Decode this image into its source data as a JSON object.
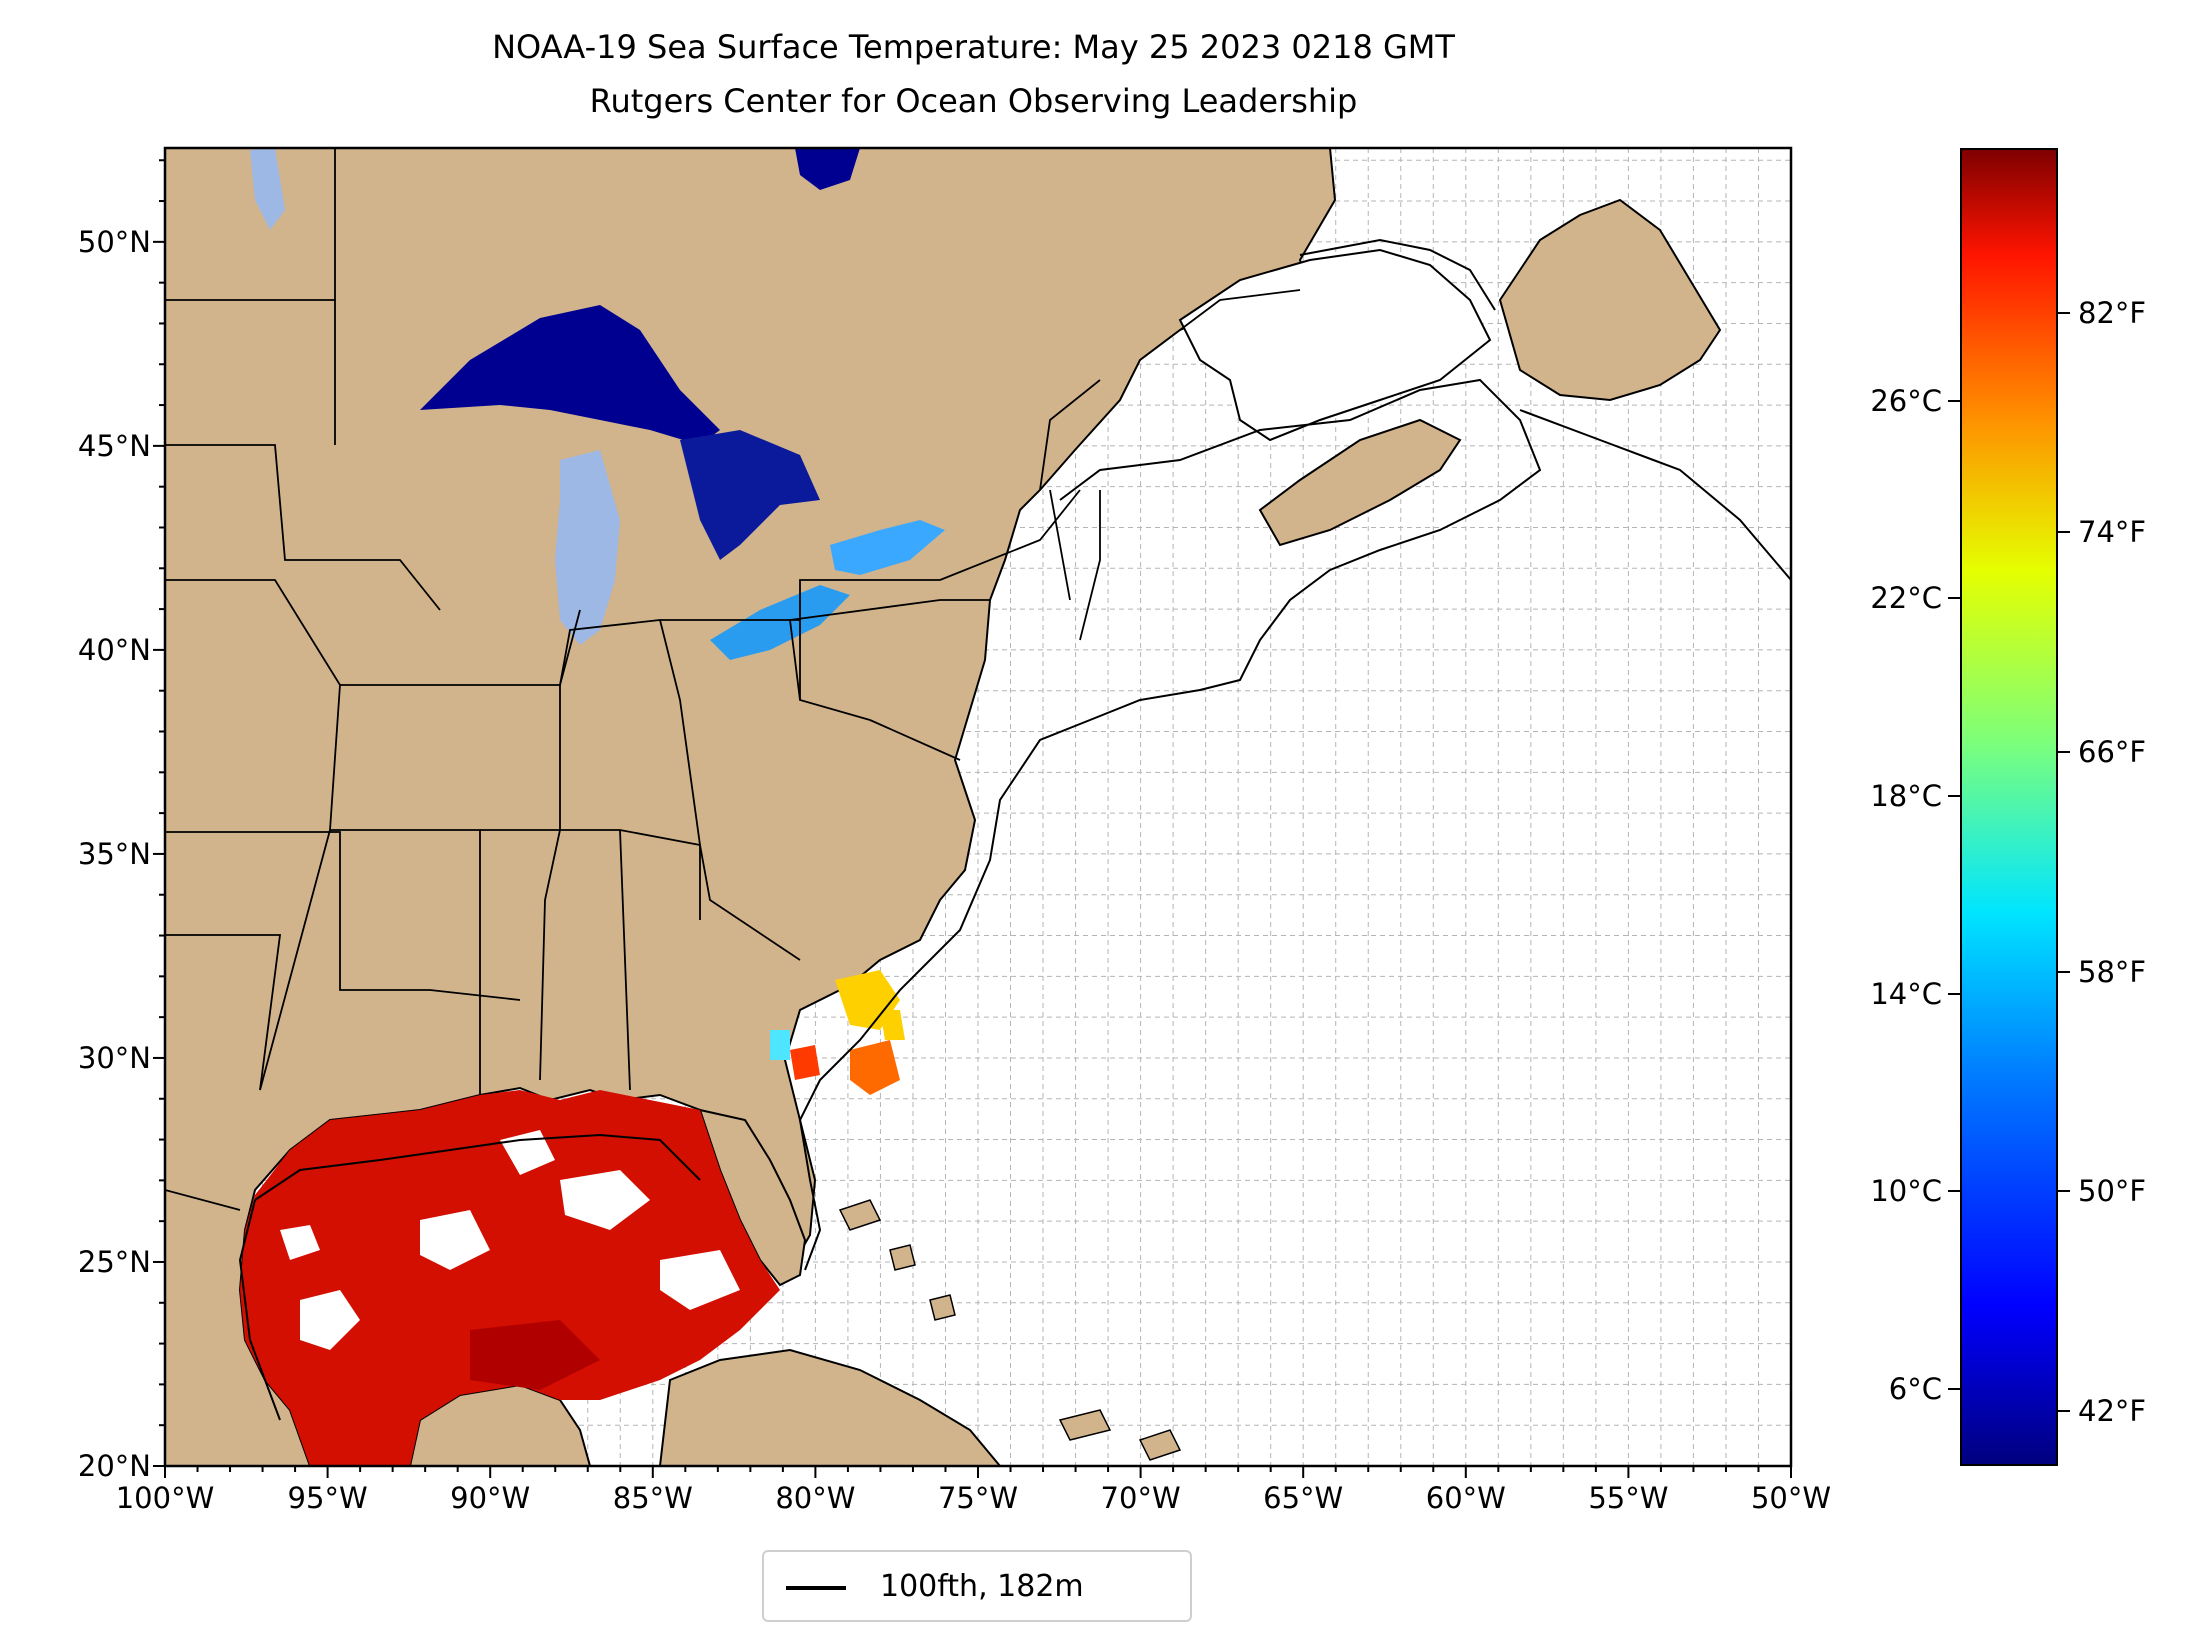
{
  "title_line1": "NOAA-19 Sea Surface Temperature: May 25 2023 0218 GMT",
  "title_line2": "Rutgers Center for Ocean Observing Leadership",
  "map": {
    "lon_range": [
      -100,
      -50
    ],
    "lat_range": [
      20,
      52.3
    ],
    "grid": true,
    "land_color": "#d2b48c",
    "water_lake_color": "#9db8e4",
    "lat_ticks": [
      {
        "value": 20,
        "label": "20°N"
      },
      {
        "value": 25,
        "label": "25°N"
      },
      {
        "value": 30,
        "label": "30°N"
      },
      {
        "value": 35,
        "label": "35°N"
      },
      {
        "value": 40,
        "label": "40°N"
      },
      {
        "value": 45,
        "label": "45°N"
      },
      {
        "value": 50,
        "label": "50°N"
      }
    ],
    "lon_ticks": [
      {
        "value": -100,
        "label": "100°W"
      },
      {
        "value": -95,
        "label": "95°W"
      },
      {
        "value": -90,
        "label": "90°W"
      },
      {
        "value": -85,
        "label": "85°W"
      },
      {
        "value": -80,
        "label": "80°W"
      },
      {
        "value": -75,
        "label": "75°W"
      },
      {
        "value": -70,
        "label": "70°W"
      },
      {
        "value": -65,
        "label": "65°W"
      },
      {
        "value": -60,
        "label": "60°W"
      },
      {
        "value": -55,
        "label": "55°W"
      },
      {
        "value": -50,
        "label": "50°W"
      }
    ]
  },
  "legend": {
    "label": "100fth, 182m",
    "line_color": "#000000"
  },
  "colorbar": {
    "colormap": "jet",
    "range_f": [
      40,
      88
    ],
    "celsius_ticks": [
      {
        "value": 6,
        "label": "6°C"
      },
      {
        "value": 10,
        "label": "10°C"
      },
      {
        "value": 14,
        "label": "14°C"
      },
      {
        "value": 18,
        "label": "18°C"
      },
      {
        "value": 22,
        "label": "22°C"
      },
      {
        "value": 26,
        "label": "26°C"
      }
    ],
    "fahrenheit_ticks": [
      {
        "value": 42,
        "label": "42°F"
      },
      {
        "value": 50,
        "label": "50°F"
      },
      {
        "value": 58,
        "label": "58°F"
      },
      {
        "value": 66,
        "label": "66°F"
      },
      {
        "value": 74,
        "label": "74°F"
      },
      {
        "value": 82,
        "label": "82°F"
      }
    ]
  }
}
